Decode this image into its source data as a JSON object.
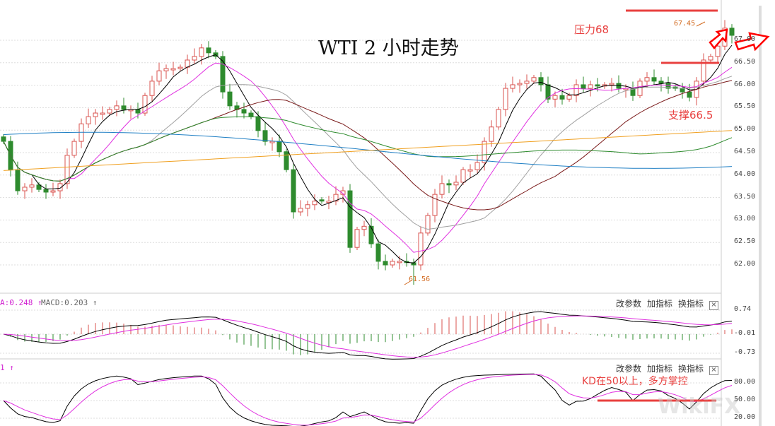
{
  "title": "WTI 2 小时走势",
  "annotations": {
    "resistance": "压力68",
    "support": "支撑66.5",
    "kd_note": "KD在50以上，多方掌控",
    "high_label": "67.45",
    "low_label": "61.56"
  },
  "macd_header": {
    "a": "A:0.248 ↑",
    "macd": "MACD:0.203 ↑"
  },
  "kd_header": "1 ↑",
  "toolbar": {
    "params": "改参数",
    "add": "加指标",
    "switch": "换指标",
    "close": "×"
  },
  "watermark": "WikiFX",
  "colors": {
    "up": "#d9534f",
    "down": "#2e8b2e",
    "annotation": "#e8403f",
    "ma": [
      "#000000",
      "#e030e0",
      "#a0a0a0",
      "#7a1a1a",
      "#2e8b2e",
      "#1f7fc4",
      "#f0a020"
    ]
  },
  "chart_data": [
    {
      "type": "candlestick",
      "title": "WTI 2 小时走势",
      "ylim": [
        61.4,
        67.7
      ],
      "yticks": [
        "67.00",
        "66.50",
        "66.00",
        "65.50",
        "65.00",
        "64.50",
        "64.00",
        "63.50",
        "63.00",
        "62.50",
        "62.00"
      ],
      "closes": [
        64.75,
        64.12,
        63.65,
        63.73,
        63.78,
        63.68,
        63.62,
        63.65,
        63.81,
        64.44,
        64.75,
        65.14,
        65.3,
        65.38,
        65.38,
        65.46,
        65.54,
        65.46,
        65.46,
        65.38,
        65.77,
        66.09,
        66.32,
        66.37,
        66.37,
        66.4,
        66.56,
        66.64,
        66.83,
        66.72,
        66.64,
        65.85,
        65.54,
        65.46,
        65.38,
        65.3,
        64.99,
        64.75,
        64.75,
        64.52,
        64.12,
        63.18,
        63.26,
        63.34,
        63.42,
        63.42,
        63.42,
        63.57,
        63.65,
        62.39,
        62.79,
        62.86,
        62.47,
        62.08,
        62.0,
        62.08,
        62.08,
        62.05,
        62.0,
        62.71,
        63.1,
        63.57,
        63.81,
        63.78,
        63.84,
        64.12,
        64.12,
        64.28,
        64.75,
        65.07,
        65.46,
        65.93,
        66.01,
        66.04,
        66.09,
        66.17,
        66.01,
        65.69,
        65.77,
        65.69,
        65.77,
        66.01,
        65.93,
        66.01,
        65.98,
        66.01,
        66.04,
        65.93,
        65.93,
        65.77,
        66.09,
        66.17,
        66.09,
        66.04,
        65.93,
        65.93,
        65.85,
        65.73,
        66.09,
        66.56,
        66.64,
        66.87,
        67.27,
        67.11
      ],
      "high": 67.45,
      "low": 61.56,
      "moving_averages": [
        5,
        10,
        20,
        30,
        60,
        120,
        250
      ],
      "levels": {
        "resistance": 68,
        "support": 66.5
      }
    },
    {
      "type": "line",
      "indicator": "MACD",
      "yticks": [
        "0.74",
        "-0.01",
        "-0.73"
      ]
    },
    {
      "type": "line",
      "indicator": "KD",
      "yticks": [
        "80.00",
        "50.00",
        "20.00"
      ],
      "level": 50
    }
  ]
}
